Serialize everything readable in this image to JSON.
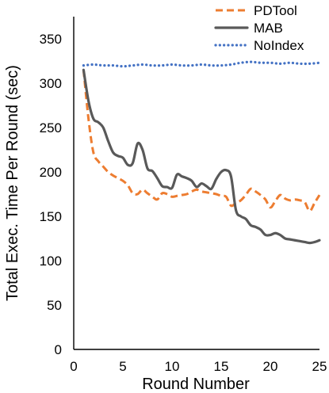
{
  "chart_data": {
    "type": "line",
    "title": "",
    "xlabel": "Round Number",
    "ylabel": "Total Exec. Time Per Round (sec)",
    "xlim": [
      0,
      25
    ],
    "ylim": [
      0,
      375
    ],
    "xticks": [
      0,
      5,
      10,
      15,
      20,
      25
    ],
    "yticks": [
      0,
      50,
      100,
      150,
      200,
      250,
      300,
      350
    ],
    "grid": false,
    "legend_position": "top-right",
    "series": [
      {
        "name": "PDTool",
        "color": "#ed7d31",
        "dash": "dashed",
        "x": [
          1,
          1.5,
          2,
          2.5,
          3,
          3.5,
          4,
          4.5,
          5,
          5.5,
          6,
          6.5,
          7,
          7.5,
          8,
          8.5,
          9,
          9.5,
          10,
          10.5,
          11,
          11.5,
          12,
          12.5,
          13,
          13.5,
          14,
          14.5,
          15,
          15.5,
          16,
          16.5,
          17,
          17.5,
          18,
          18.5,
          19,
          19.5,
          20,
          20.5,
          21,
          21.5,
          22,
          22.5,
          23,
          23.5,
          24,
          24.5,
          25
        ],
        "y": [
          315,
          260,
          222,
          212,
          206,
          200,
          196,
          193,
          190,
          185,
          176,
          175,
          180,
          176,
          172,
          169,
          176,
          175,
          172,
          173,
          174,
          175,
          178,
          180,
          178,
          177,
          176,
          175,
          173,
          172,
          162,
          165,
          168,
          174,
          181,
          178,
          174,
          169,
          160,
          167,
          174,
          170,
          168,
          169,
          168,
          166,
          156,
          165,
          174
        ]
      },
      {
        "name": "MAB",
        "color": "#595959",
        "dash": "solid",
        "x": [
          1,
          1.5,
          2,
          2.5,
          3,
          3.5,
          4,
          4.5,
          5,
          5.5,
          6,
          6.5,
          7,
          7.5,
          8,
          8.5,
          9,
          9.5,
          10,
          10.5,
          11,
          11.5,
          12,
          12.5,
          13,
          13.5,
          14,
          14.5,
          15,
          15.5,
          16,
          16.5,
          17,
          17.5,
          18,
          18.5,
          19,
          19.5,
          20,
          20.5,
          21,
          21.5,
          22,
          22.5,
          23,
          23.5,
          24,
          24.5,
          25
        ],
        "y": [
          315,
          280,
          260,
          256,
          250,
          235,
          222,
          218,
          216,
          208,
          210,
          232,
          225,
          204,
          201,
          193,
          184,
          183,
          182,
          197,
          195,
          193,
          190,
          183,
          187,
          184,
          181,
          192,
          200,
          202,
          195,
          157,
          150,
          147,
          140,
          138,
          135,
          129,
          129,
          131,
          129,
          125,
          124,
          123,
          122,
          121,
          120,
          121,
          123
        ]
      },
      {
        "name": "NoIndex",
        "color": "#4472c4",
        "dash": "dotted",
        "x": [
          1,
          2,
          3,
          4,
          5,
          6,
          7,
          8,
          9,
          10,
          11,
          12,
          13,
          14,
          15,
          16,
          17,
          18,
          19,
          20,
          21,
          22,
          23,
          24,
          25
        ],
        "y": [
          320,
          321,
          320,
          320,
          319,
          320,
          321,
          320,
          320,
          321,
          320,
          320,
          321,
          320,
          320,
          321,
          323,
          324,
          323,
          323,
          322,
          323,
          322,
          322,
          323
        ]
      }
    ]
  }
}
